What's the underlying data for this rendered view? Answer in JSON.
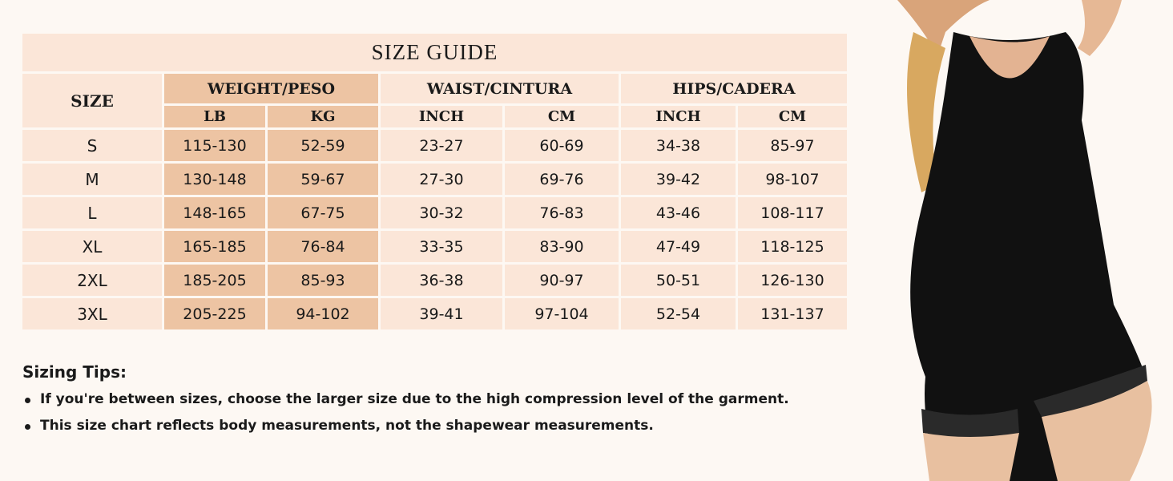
{
  "size_guide": {
    "title": "SIZE GUIDE",
    "size_header": "SIZE",
    "groups": [
      "WEIGHT/PESO",
      "WAIST/CINTURA",
      "HIPS/CADERA"
    ],
    "subheaders": [
      "LB",
      "KG",
      "INCH",
      "CM",
      "INCH",
      "CM"
    ],
    "rows": [
      [
        "S",
        "115-130",
        "52-59",
        "23-27",
        "60-69",
        "34-38",
        "85-97"
      ],
      [
        "M",
        "130-148",
        "59-67",
        "27-30",
        "69-76",
        "39-42",
        "98-107"
      ],
      [
        "L",
        "148-165",
        "67-75",
        "30-32",
        "76-83",
        "43-46",
        "108-117"
      ],
      [
        "XL",
        "165-185",
        "76-84",
        "33-35",
        "83-90",
        "47-49",
        "118-125"
      ],
      [
        "2XL",
        "185-205",
        "85-93",
        "36-38",
        "90-97",
        "50-51",
        "126-130"
      ],
      [
        "3XL",
        "205-225",
        "94-102",
        "39-41",
        "97-104",
        "52-54",
        "131-137"
      ]
    ],
    "colors": {
      "cell": "#fbe6d8",
      "weight_cell": "#edc4a3",
      "background": "#fdf8f3"
    }
  },
  "tips": {
    "heading": "Sizing Tips:",
    "items": [
      "If you're between sizes, choose the larger size due to the high compression level of the garment.",
      "This size chart reflects body measurements, not the shapewear measurements."
    ]
  }
}
